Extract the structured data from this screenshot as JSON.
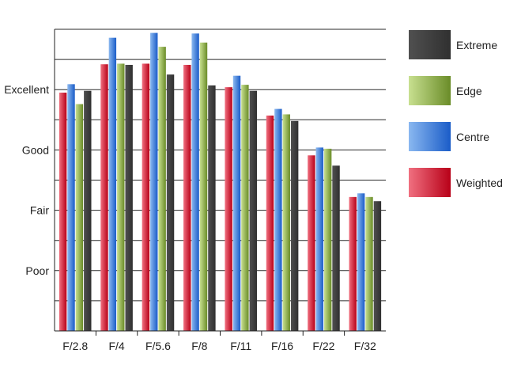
{
  "chart_data": {
    "type": "bar",
    "title": "",
    "xlabel": "",
    "ylabel": "",
    "categories": [
      "F/2.8",
      "F/4",
      "F/5.6",
      "F/8",
      "F/11",
      "F/16",
      "F/22",
      "F/32"
    ],
    "y_tick_labels": [
      {
        "label": "Poor",
        "value": 1
      },
      {
        "label": "Fair",
        "value": 2
      },
      {
        "label": "Good",
        "value": 3
      },
      {
        "label": "Excellent",
        "value": 4
      }
    ],
    "ylim": [
      0,
      5
    ],
    "grid_step": 0.5,
    "legend_position": "right",
    "series": [
      {
        "name": "Weighted",
        "color_light": "#f07080",
        "color_dark": "#b80018",
        "values": [
          3.95,
          4.42,
          4.43,
          4.41,
          4.04,
          3.57,
          2.91,
          2.22
        ]
      },
      {
        "name": "Centre",
        "color_light": "#8ab8f0",
        "color_dark": "#1a5cc8",
        "values": [
          4.09,
          4.86,
          4.94,
          4.93,
          4.23,
          3.68,
          3.04,
          2.28
        ]
      },
      {
        "name": "Edge",
        "color_light": "#c8e090",
        "color_dark": "#6a8c28",
        "values": [
          3.76,
          4.43,
          4.71,
          4.78,
          4.08,
          3.59,
          3.02,
          2.22
        ]
      },
      {
        "name": "Extreme",
        "color_light": "#505050",
        "color_dark": "#303030",
        "values": [
          3.98,
          4.41,
          4.25,
          4.07,
          3.98,
          3.48,
          2.74,
          2.15
        ]
      }
    ],
    "legend_order": [
      "Extreme",
      "Edge",
      "Centre",
      "Weighted"
    ]
  }
}
